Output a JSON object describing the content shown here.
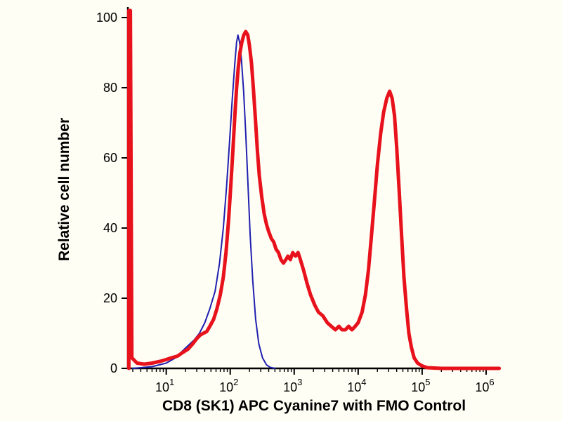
{
  "chart_data": {
    "type": "line",
    "title": "",
    "xlabel": "CD8 (SK1) APC Cyanine7 with FMO Control",
    "ylabel": "Relative cell number",
    "x_scale": "log",
    "x_range_exp": [
      0.4,
      6.22
    ],
    "ylim": [
      0,
      100
    ],
    "y_ticks": [
      0,
      20,
      40,
      60,
      80,
      100
    ],
    "x_major_ticks_exp": [
      1,
      2,
      3,
      4,
      5,
      6
    ],
    "grid": false,
    "legend": "none",
    "axis_color": "#000000",
    "background_color": "#fffef5",
    "series": [
      {
        "id": "fmo-control",
        "name": "FMO Control",
        "color": "#2020b0",
        "width": 2,
        "points": [
          [
            3,
            0
          ],
          [
            6,
            0.5
          ],
          [
            10,
            1.5
          ],
          [
            14,
            3
          ],
          [
            18,
            5
          ],
          [
            22,
            6.5
          ],
          [
            27,
            8
          ],
          [
            33,
            10
          ],
          [
            40,
            13
          ],
          [
            48,
            17
          ],
          [
            58,
            22
          ],
          [
            68,
            30
          ],
          [
            78,
            40
          ],
          [
            88,
            52
          ],
          [
            98,
            65
          ],
          [
            108,
            77
          ],
          [
            118,
            87
          ],
          [
            126,
            93
          ],
          [
            132,
            95
          ],
          [
            140,
            93
          ],
          [
            150,
            88
          ],
          [
            162,
            79
          ],
          [
            175,
            67
          ],
          [
            190,
            52
          ],
          [
            205,
            38
          ],
          [
            225,
            25
          ],
          [
            250,
            14
          ],
          [
            280,
            7
          ],
          [
            320,
            3
          ],
          [
            370,
            1
          ],
          [
            420,
            0.3
          ],
          [
            500,
            0
          ]
        ]
      },
      {
        "id": "cd8-apc-cy7",
        "name": "CD8 (SK1) APC Cyanine7",
        "color": "#e8121c",
        "width": 5,
        "points": [
          [
            2.6,
            0
          ],
          [
            2.6,
            102
          ],
          [
            2.75,
            102
          ],
          [
            2.9,
            3
          ],
          [
            3.5,
            1.5
          ],
          [
            4.5,
            1.2
          ],
          [
            6,
            1.5
          ],
          [
            8,
            2
          ],
          [
            10,
            2.5
          ],
          [
            12,
            3
          ],
          [
            15,
            3.5
          ],
          [
            18,
            4.5
          ],
          [
            22,
            5.5
          ],
          [
            26,
            7
          ],
          [
            30,
            8.5
          ],
          [
            34,
            9.5
          ],
          [
            38,
            10
          ],
          [
            43,
            10.5
          ],
          [
            48,
            12
          ],
          [
            55,
            14
          ],
          [
            62,
            17
          ],
          [
            70,
            21
          ],
          [
            78,
            26
          ],
          [
            86,
            33
          ],
          [
            94,
            42
          ],
          [
            102,
            52
          ],
          [
            110,
            62
          ],
          [
            118,
            72
          ],
          [
            126,
            80
          ],
          [
            134,
            86
          ],
          [
            142,
            90
          ],
          [
            152,
            93
          ],
          [
            163,
            95
          ],
          [
            175,
            96
          ],
          [
            188,
            95
          ],
          [
            200,
            92
          ],
          [
            215,
            87
          ],
          [
            230,
            80
          ],
          [
            248,
            71
          ],
          [
            266,
            62
          ],
          [
            285,
            55
          ],
          [
            310,
            49
          ],
          [
            340,
            44
          ],
          [
            370,
            41
          ],
          [
            400,
            39
          ],
          [
            440,
            37
          ],
          [
            480,
            36
          ],
          [
            520,
            34
          ],
          [
            570,
            33
          ],
          [
            620,
            31
          ],
          [
            680,
            30
          ],
          [
            740,
            31
          ],
          [
            800,
            32
          ],
          [
            870,
            31
          ],
          [
            950,
            33
          ],
          [
            1050,
            32
          ],
          [
            1150,
            33
          ],
          [
            1250,
            31
          ],
          [
            1400,
            28
          ],
          [
            1600,
            24
          ],
          [
            1800,
            21
          ],
          [
            2100,
            18
          ],
          [
            2400,
            16
          ],
          [
            2800,
            15
          ],
          [
            3300,
            13
          ],
          [
            3800,
            12
          ],
          [
            4400,
            11
          ],
          [
            5000,
            12
          ],
          [
            5600,
            11
          ],
          [
            6300,
            11
          ],
          [
            7100,
            12
          ],
          [
            8000,
            11
          ],
          [
            9000,
            12
          ],
          [
            10000,
            13
          ],
          [
            11500,
            16
          ],
          [
            13000,
            21
          ],
          [
            14500,
            28
          ],
          [
            16000,
            37
          ],
          [
            18000,
            48
          ],
          [
            20000,
            58
          ],
          [
            22500,
            67
          ],
          [
            25000,
            73
          ],
          [
            28000,
            77
          ],
          [
            31000,
            79
          ],
          [
            34000,
            77
          ],
          [
            37000,
            72
          ],
          [
            40000,
            63
          ],
          [
            44000,
            50
          ],
          [
            48000,
            37
          ],
          [
            52000,
            26
          ],
          [
            57000,
            17
          ],
          [
            62000,
            10
          ],
          [
            68000,
            6
          ],
          [
            75000,
            3
          ],
          [
            85000,
            1.5
          ],
          [
            100000,
            0.7
          ],
          [
            120000,
            0.2
          ],
          [
            200000,
            0
          ],
          [
            1600000,
            0
          ]
        ]
      }
    ]
  }
}
